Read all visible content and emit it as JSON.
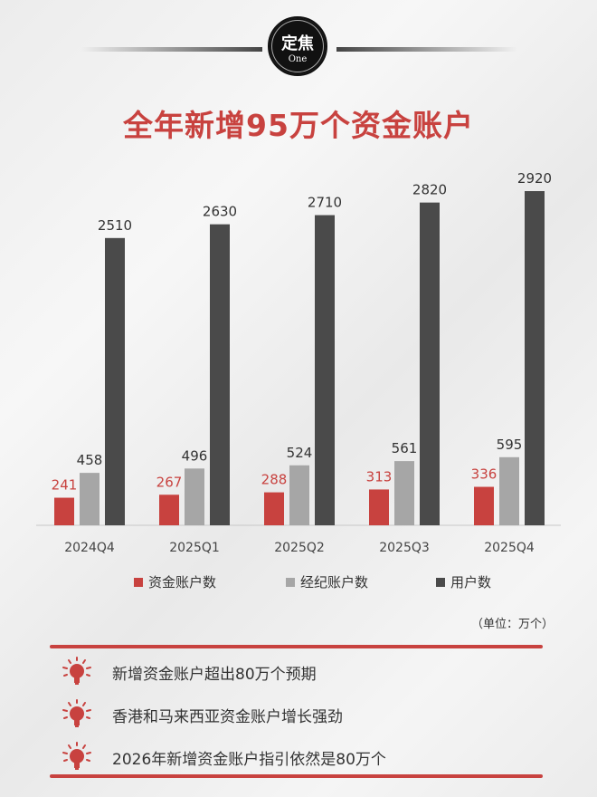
{
  "header": {
    "badge_main": "定焦",
    "badge_sub": "One",
    "title": "全年新增95万个资金账户"
  },
  "chart_data": {
    "type": "bar",
    "categories": [
      "2024Q4",
      "2025Q1",
      "2025Q2",
      "2025Q3",
      "2025Q4"
    ],
    "series": [
      {
        "name": "资金账户数",
        "color": "#c8423f",
        "label_color": "#c8423f",
        "values": [
          241,
          267,
          288,
          313,
          336
        ]
      },
      {
        "name": "经纪账户数",
        "color": "#a6a6a6",
        "label_color": "#333333",
        "values": [
          458,
          496,
          524,
          561,
          595
        ]
      },
      {
        "name": "用户数",
        "color": "#4a4a4a",
        "label_color": "#333333",
        "values": [
          2510,
          2630,
          2710,
          2820,
          2920
        ]
      }
    ],
    "ylim": [
      0,
      3000
    ],
    "grid": false,
    "legend": "bottom"
  },
  "unit": "（单位：万个）",
  "bullets": [
    {
      "icon": "lightbulb-icon",
      "text": "新增资金账户超出80万个预期"
    },
    {
      "icon": "lightbulb-icon",
      "text": "香港和马来西亚资金账户增长强劲"
    },
    {
      "icon": "lightbulb-icon",
      "text": "2026年新增资金账户指引依然是80万个"
    }
  ]
}
